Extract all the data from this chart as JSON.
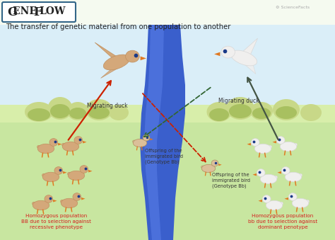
{
  "title": "Gene Flow",
  "subtitle": "The transfer of genetic material from one population to another",
  "bg_color": "#f5faf0",
  "sky_color": "#daeef8",
  "grass_color": "#c8e6a0",
  "grass_dark": "#b0d080",
  "river_color": "#3a5fcc",
  "river_highlight": "#5a7fe8",
  "duck_tan": "#d4a87a",
  "duck_tan_dark": "#c09060",
  "duck_white": "#f0efee",
  "duck_white_dark": "#d8d8d8",
  "duck_beak": "#e07820",
  "duck_eye": "#1a3a88",
  "label_color_red": "#d42020",
  "label_color_dark": "#333333",
  "arrow_red": "#cc2200",
  "arrow_dark": "#445544",
  "arrow_green": "#336633",
  "watermark": "ScienceFacts",
  "left_bottom_label": "Homozygous population\nBB due to selection against\nrecessive phenotype",
  "right_bottom_label": "Homozygous population\nbb due to selection against\ndominant penotype",
  "left_arrow_label": "Migrating duck",
  "right_arrow_label": "Migrating duck",
  "left_offspring_label": "Offspring of the\nimmigrated bird\n(Genotype Bb)",
  "right_offspring_label": "Offspring of the\nimmigrated bird\n(Genotype Bb)"
}
